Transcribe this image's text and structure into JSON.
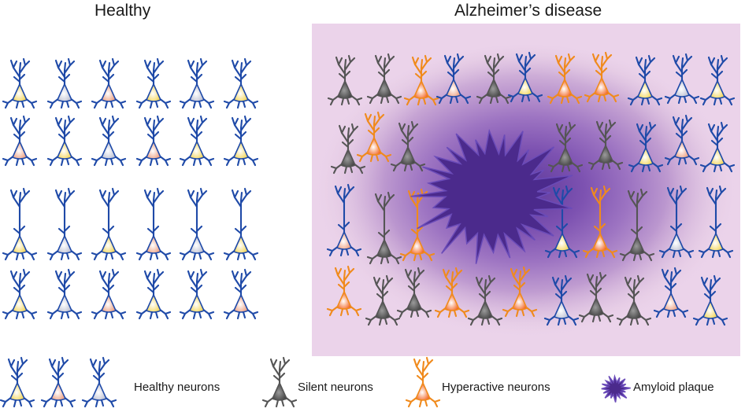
{
  "titles": {
    "healthy": "Healthy",
    "alzheimers": "Alzheimer’s disease"
  },
  "legend": {
    "healthy": "Healthy neurons",
    "silent": "Silent neurons",
    "hyperactive": "Hyperactive neurons",
    "plaque": "Amyloid plaque"
  },
  "colors": {
    "healthy_stroke": "#1f4aa8",
    "silent_stroke": "#555555",
    "hyperactive_stroke": "#f08a1c",
    "plaque": "#4b2a8c",
    "panel_bg": "#ebd3ea",
    "yellow_soma": "#f3d24a",
    "pink_soma": "#ec9876",
    "gray_soma": "#b9bccf",
    "silent_soma": "#3d3d3d",
    "hyper_soma": "#f25a12"
  },
  "icons": {
    "neuron": "pyramidal-neuron-icon",
    "plaque": "amyloid-plaque-icon"
  }
}
